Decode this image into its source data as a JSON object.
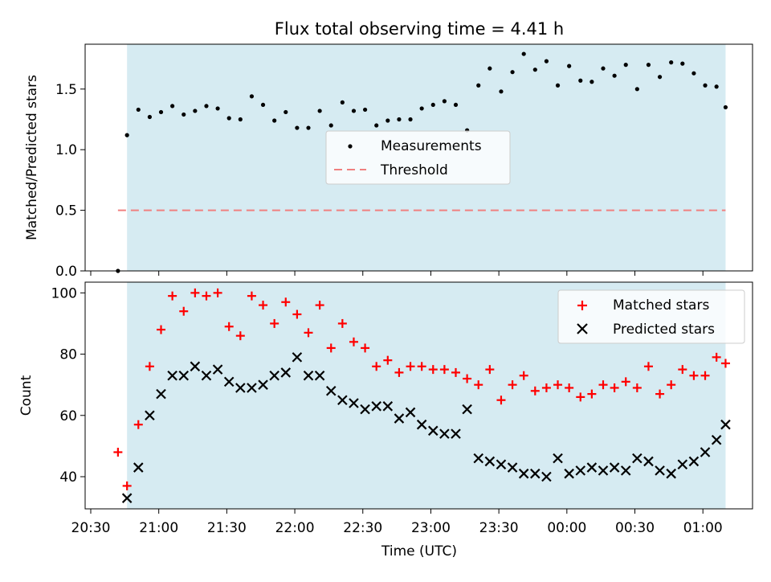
{
  "title": "Flux total observing time = 4.41 h",
  "colors": {
    "observing_band": "#add8e6",
    "measurement": "#000000",
    "threshold": "#f08080",
    "matched": "#ff0000",
    "predicted": "#000000"
  },
  "chart_data": [
    {
      "type": "scatter",
      "ylabel": "Matched/Predicted stars",
      "ylim": [
        0,
        1.87
      ],
      "yticks": [
        0.0,
        0.5,
        1.0,
        1.5
      ],
      "yticklabels": [
        "0.0",
        "0.5",
        "1.0",
        "1.5"
      ],
      "observing_window": [
        "20:46",
        "01:10"
      ],
      "legend": {
        "placement": "center",
        "entries": [
          "Measurements",
          "Threshold"
        ]
      },
      "threshold": {
        "name": "Threshold",
        "value": 0.5,
        "x_start": "20:42",
        "x_end": "01:10",
        "style": "dashed"
      },
      "series": [
        {
          "name": "Measurements",
          "marker": "dot",
          "points": [
            [
              "20:42",
              0.0
            ],
            [
              "20:46",
              1.12
            ],
            [
              "20:51",
              1.33
            ],
            [
              "20:56",
              1.27
            ],
            [
              "21:01",
              1.31
            ],
            [
              "21:06",
              1.36
            ],
            [
              "21:11",
              1.29
            ],
            [
              "21:16",
              1.32
            ],
            [
              "21:21",
              1.36
            ],
            [
              "21:26",
              1.34
            ],
            [
              "21:31",
              1.26
            ],
            [
              "21:36",
              1.25
            ],
            [
              "21:41",
              1.44
            ],
            [
              "21:46",
              1.37
            ],
            [
              "21:51",
              1.24
            ],
            [
              "21:56",
              1.31
            ],
            [
              "22:01",
              1.18
            ],
            [
              "22:06",
              1.18
            ],
            [
              "22:11",
              1.32
            ],
            [
              "22:16",
              1.2
            ],
            [
              "22:21",
              1.39
            ],
            [
              "22:26",
              1.32
            ],
            [
              "22:31",
              1.33
            ],
            [
              "22:36",
              1.2
            ],
            [
              "22:41",
              1.24
            ],
            [
              "22:46",
              1.25
            ],
            [
              "22:51",
              1.25
            ],
            [
              "22:56",
              1.34
            ],
            [
              "23:01",
              1.37
            ],
            [
              "23:06",
              1.4
            ],
            [
              "23:11",
              1.37
            ],
            [
              "23:16",
              1.16
            ],
            [
              "23:21",
              1.53
            ],
            [
              "23:26",
              1.67
            ],
            [
              "23:31",
              1.48
            ],
            [
              "23:36",
              1.64
            ],
            [
              "23:41",
              1.79
            ],
            [
              "23:46",
              1.66
            ],
            [
              "23:51",
              1.73
            ],
            [
              "23:56",
              1.53
            ],
            [
              "00:01",
              1.69
            ],
            [
              "00:06",
              1.57
            ],
            [
              "00:11",
              1.56
            ],
            [
              "00:16",
              1.67
            ],
            [
              "00:21",
              1.61
            ],
            [
              "00:26",
              1.7
            ],
            [
              "00:31",
              1.5
            ],
            [
              "00:36",
              1.7
            ],
            [
              "00:41",
              1.6
            ],
            [
              "00:46",
              1.72
            ],
            [
              "00:51",
              1.71
            ],
            [
              "00:56",
              1.63
            ],
            [
              "01:01",
              1.53
            ],
            [
              "01:06",
              1.52
            ],
            [
              "01:10",
              1.35
            ]
          ]
        }
      ]
    },
    {
      "type": "scatter",
      "ylabel": "Count",
      "xlabel": "Time (UTC)",
      "ylim": [
        29.5,
        103.5
      ],
      "yticks": [
        40,
        60,
        80,
        100
      ],
      "yticklabels": [
        "40",
        "60",
        "80",
        "100"
      ],
      "xtick_values": [
        "20:30",
        "21:00",
        "21:30",
        "22:00",
        "22:30",
        "23:00",
        "23:30",
        "00:00",
        "00:30",
        "01:00"
      ],
      "xticklabels": [
        "20:30",
        "21:00",
        "21:30",
        "22:00",
        "22:30",
        "23:00",
        "23:30",
        "00:00",
        "00:30",
        "01:00"
      ],
      "observing_window": [
        "20:46",
        "01:10"
      ],
      "legend": {
        "placement": "top-right",
        "entries": [
          "Matched stars",
          "Predicted stars"
        ]
      },
      "series": [
        {
          "name": "Matched stars",
          "marker": "+",
          "points": [
            [
              "20:42",
              48
            ],
            [
              "20:46",
              37
            ],
            [
              "20:51",
              57
            ],
            [
              "20:56",
              76
            ],
            [
              "21:01",
              88
            ],
            [
              "21:06",
              99
            ],
            [
              "21:11",
              94
            ],
            [
              "21:16",
              100
            ],
            [
              "21:21",
              99
            ],
            [
              "21:26",
              100
            ],
            [
              "21:31",
              89
            ],
            [
              "21:36",
              86
            ],
            [
              "21:41",
              99
            ],
            [
              "21:46",
              96
            ],
            [
              "21:51",
              90
            ],
            [
              "21:56",
              97
            ],
            [
              "22:01",
              93
            ],
            [
              "22:06",
              87
            ],
            [
              "22:11",
              96
            ],
            [
              "22:16",
              82
            ],
            [
              "22:21",
              90
            ],
            [
              "22:26",
              84
            ],
            [
              "22:31",
              82
            ],
            [
              "22:36",
              76
            ],
            [
              "22:41",
              78
            ],
            [
              "22:46",
              74
            ],
            [
              "22:51",
              76
            ],
            [
              "22:56",
              76
            ],
            [
              "23:01",
              75
            ],
            [
              "23:06",
              75
            ],
            [
              "23:11",
              74
            ],
            [
              "23:16",
              72
            ],
            [
              "23:21",
              70
            ],
            [
              "23:26",
              75
            ],
            [
              "23:31",
              65
            ],
            [
              "23:36",
              70
            ],
            [
              "23:41",
              73
            ],
            [
              "23:46",
              68
            ],
            [
              "23:51",
              69
            ],
            [
              "23:56",
              70
            ],
            [
              "00:01",
              69
            ],
            [
              "00:06",
              66
            ],
            [
              "00:11",
              67
            ],
            [
              "00:16",
              70
            ],
            [
              "00:21",
              69
            ],
            [
              "00:26",
              71
            ],
            [
              "00:31",
              69
            ],
            [
              "00:36",
              76
            ],
            [
              "00:41",
              67
            ],
            [
              "00:46",
              70
            ],
            [
              "00:51",
              75
            ],
            [
              "00:56",
              73
            ],
            [
              "01:01",
              73
            ],
            [
              "01:06",
              79
            ],
            [
              "01:10",
              77
            ]
          ]
        },
        {
          "name": "Predicted stars",
          "marker": "x",
          "points": [
            [
              "20:46",
              33
            ],
            [
              "20:51",
              43
            ],
            [
              "20:56",
              60
            ],
            [
              "21:01",
              67
            ],
            [
              "21:06",
              73
            ],
            [
              "21:11",
              73
            ],
            [
              "21:16",
              76
            ],
            [
              "21:21",
              73
            ],
            [
              "21:26",
              75
            ],
            [
              "21:31",
              71
            ],
            [
              "21:36",
              69
            ],
            [
              "21:41",
              69
            ],
            [
              "21:46",
              70
            ],
            [
              "21:51",
              73
            ],
            [
              "21:56",
              74
            ],
            [
              "22:01",
              79
            ],
            [
              "22:06",
              73
            ],
            [
              "22:11",
              73
            ],
            [
              "22:16",
              68
            ],
            [
              "22:21",
              65
            ],
            [
              "22:26",
              64
            ],
            [
              "22:31",
              62
            ],
            [
              "22:36",
              63
            ],
            [
              "22:41",
              63
            ],
            [
              "22:46",
              59
            ],
            [
              "22:51",
              61
            ],
            [
              "22:56",
              57
            ],
            [
              "23:01",
              55
            ],
            [
              "23:06",
              54
            ],
            [
              "23:11",
              54
            ],
            [
              "23:16",
              62
            ],
            [
              "23:21",
              46
            ],
            [
              "23:26",
              45
            ],
            [
              "23:31",
              44
            ],
            [
              "23:36",
              43
            ],
            [
              "23:41",
              41
            ],
            [
              "23:46",
              41
            ],
            [
              "23:51",
              40
            ],
            [
              "23:56",
              46
            ],
            [
              "00:01",
              41
            ],
            [
              "00:06",
              42
            ],
            [
              "00:11",
              43
            ],
            [
              "00:16",
              42
            ],
            [
              "00:21",
              43
            ],
            [
              "00:26",
              42
            ],
            [
              "00:31",
              46
            ],
            [
              "00:36",
              45
            ],
            [
              "00:41",
              42
            ],
            [
              "00:46",
              41
            ],
            [
              "00:51",
              44
            ],
            [
              "00:56",
              45
            ],
            [
              "01:01",
              48
            ],
            [
              "01:06",
              52
            ],
            [
              "01:10",
              57
            ]
          ]
        }
      ]
    }
  ]
}
